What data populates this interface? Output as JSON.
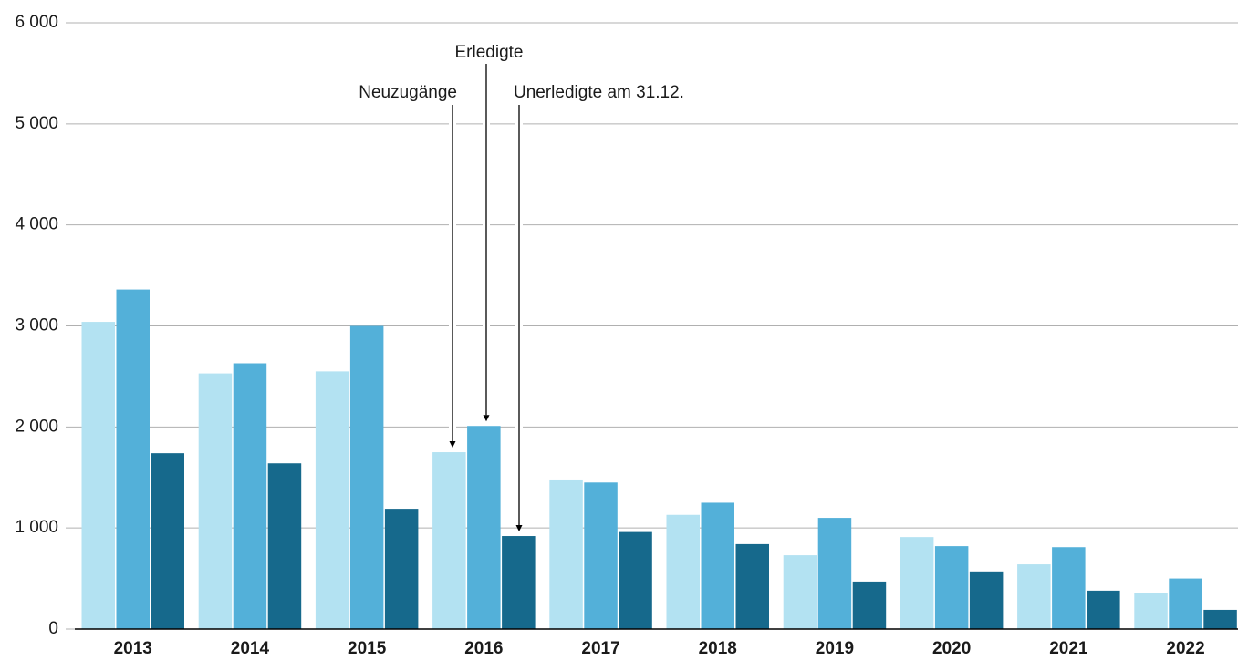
{
  "chart_data": {
    "type": "bar",
    "categories": [
      "2013",
      "2014",
      "2015",
      "2016",
      "2017",
      "2018",
      "2019",
      "2020",
      "2021",
      "2022"
    ],
    "series": [
      {
        "name": "Neuzugänge",
        "color": "#b3e2f2",
        "values": [
          3040,
          2530,
          2550,
          1750,
          1480,
          1130,
          730,
          910,
          640,
          360
        ]
      },
      {
        "name": "Erledigte",
        "color": "#53b0d9",
        "values": [
          3360,
          2630,
          3000,
          2010,
          1450,
          1250,
          1100,
          820,
          810,
          500
        ]
      },
      {
        "name": "Unerledigte am 31.12.",
        "color": "#16698c",
        "values": [
          1740,
          1640,
          1190,
          920,
          960,
          840,
          470,
          570,
          380,
          190
        ]
      }
    ],
    "ylim": [
      0,
      6000
    ],
    "yticks": [
      0,
      {
        "value": 1000,
        "label": "1 000"
      },
      {
        "value": 2000,
        "label": "2 000"
      },
      {
        "value": 3000,
        "label": "3 000"
      },
      {
        "value": 4000,
        "label": "4 000"
      },
      {
        "value": 5000,
        "label": "5 000"
      },
      {
        "value": 6000,
        "label": "6 000"
      }
    ],
    "grid": true
  }
}
